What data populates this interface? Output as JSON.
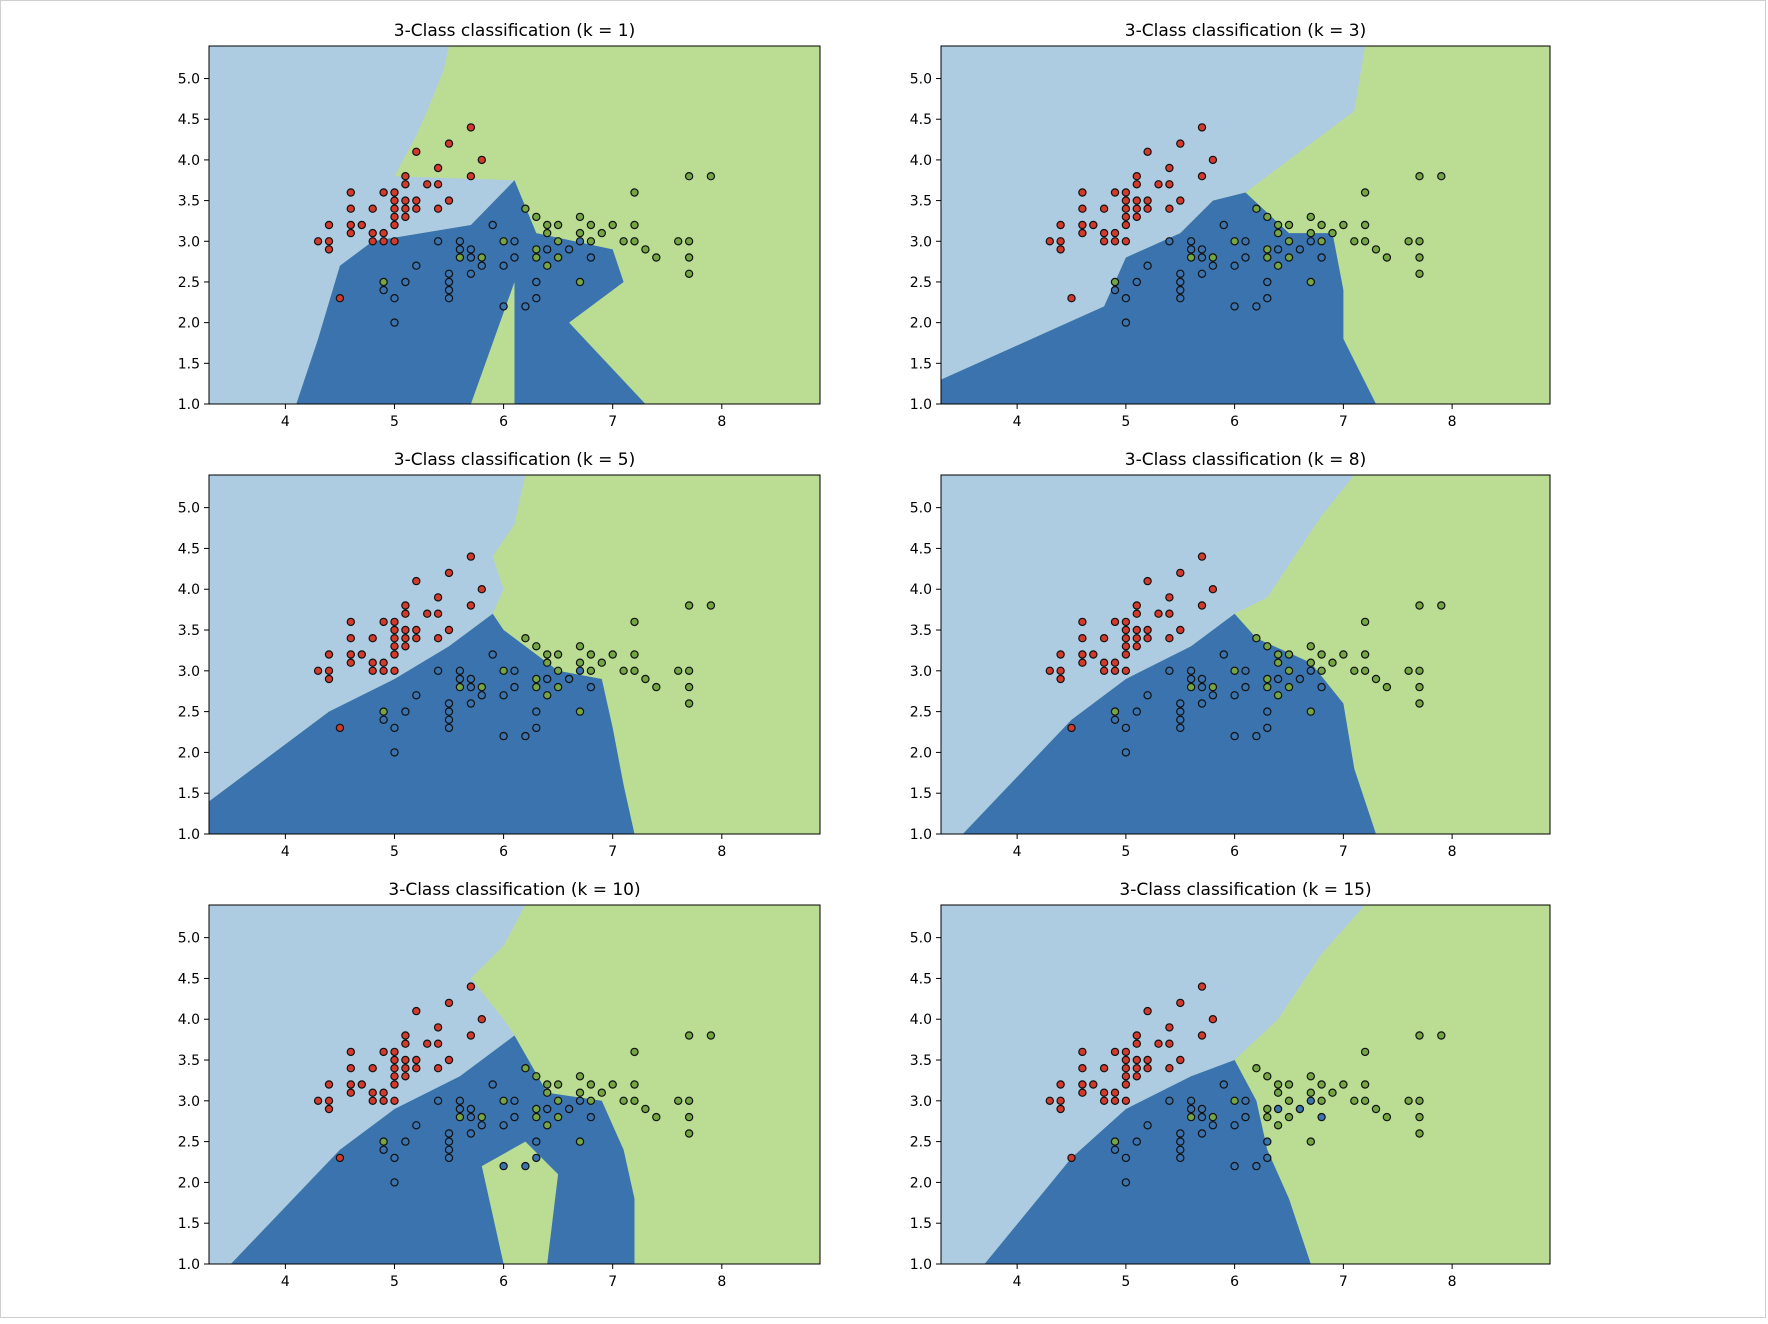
{
  "colors": {
    "class_a_region": "#aecce1",
    "class_b_region": "#3a73ae",
    "class_c_region": "#bbdd93",
    "class_a_point": "#d33a2c",
    "class_b_point": "#3a73ae",
    "class_c_point": "#75a644",
    "axis_color": "#000000"
  },
  "chart_data": [
    {
      "type": "scatter",
      "title": "3-Class classification (k = 1)",
      "xlabel": "",
      "ylabel": "",
      "xlim": [
        3.3,
        8.9
      ],
      "ylim": [
        1.0,
        5.4
      ],
      "xticks": [
        "4",
        "5",
        "6",
        "7",
        "8"
      ],
      "yticks": [
        "1.0",
        "1.5",
        "2.0",
        "2.5",
        "3.0",
        "3.5",
        "4.0",
        "4.5",
        "5.0"
      ],
      "regions": {
        "light": [
          [
            3.3,
            5.4
          ],
          [
            5.5,
            5.4
          ],
          [
            5.45,
            5.1
          ],
          [
            5.3,
            4.6
          ],
          [
            5.2,
            4.3
          ],
          [
            5.0,
            3.8
          ],
          [
            6.1,
            3.75
          ],
          [
            5.7,
            3.2
          ],
          [
            4.8,
            3.0
          ],
          [
            4.5,
            2.7
          ],
          [
            4.3,
            1.8
          ],
          [
            4.1,
            1.0
          ],
          [
            3.3,
            1.0
          ]
        ],
        "dark": [
          [
            4.1,
            1.0
          ],
          [
            4.3,
            1.8
          ],
          [
            4.5,
            2.7
          ],
          [
            4.8,
            3.0
          ],
          [
            5.7,
            3.2
          ],
          [
            6.1,
            3.75
          ],
          [
            6.3,
            3.1
          ],
          [
            7.0,
            2.9
          ],
          [
            7.1,
            2.5
          ],
          [
            6.6,
            2.0
          ],
          [
            7.3,
            1.0
          ],
          [
            6.1,
            1.0
          ],
          [
            6.1,
            2.5
          ],
          [
            5.7,
            1.0
          ]
        ],
        "light_note": "remaining area is class C"
      },
      "series": [
        {
          "class": "a",
          "points": [
            [
              4.3,
              3.0
            ],
            [
              4.4,
              2.9
            ],
            [
              4.4,
              3.0
            ],
            [
              4.4,
              3.2
            ],
            [
              4.5,
              2.3
            ],
            [
              4.6,
              3.1
            ],
            [
              4.6,
              3.2
            ],
            [
              4.6,
              3.4
            ],
            [
              4.6,
              3.6
            ],
            [
              4.7,
              3.2
            ],
            [
              4.8,
              3.0
            ],
            [
              4.8,
              3.1
            ],
            [
              4.8,
              3.4
            ],
            [
              4.9,
              3.0
            ],
            [
              4.9,
              3.1
            ],
            [
              4.9,
              3.6
            ],
            [
              5.0,
              3.0
            ],
            [
              5.0,
              3.2
            ],
            [
              5.0,
              3.3
            ],
            [
              5.0,
              3.4
            ],
            [
              5.0,
              3.5
            ],
            [
              5.0,
              3.6
            ],
            [
              5.1,
              3.3
            ],
            [
              5.1,
              3.4
            ],
            [
              5.1,
              3.5
            ],
            [
              5.1,
              3.7
            ],
            [
              5.1,
              3.8
            ],
            [
              5.2,
              3.4
            ],
            [
              5.2,
              3.5
            ],
            [
              5.2,
              4.1
            ],
            [
              5.3,
              3.7
            ],
            [
              5.4,
              3.4
            ],
            [
              5.4,
              3.7
            ],
            [
              5.4,
              3.9
            ],
            [
              5.5,
              3.5
            ],
            [
              5.5,
              4.2
            ],
            [
              5.7,
              3.8
            ],
            [
              5.7,
              4.4
            ],
            [
              5.8,
              4.0
            ]
          ]
        },
        {
          "class": "b",
          "points": [
            [
              4.9,
              2.4
            ],
            [
              5.0,
              2.0
            ],
            [
              5.0,
              2.3
            ],
            [
              5.1,
              2.5
            ],
            [
              5.2,
              2.7
            ],
            [
              5.5,
              2.3
            ],
            [
              5.5,
              2.4
            ],
            [
              5.5,
              2.5
            ],
            [
              5.5,
              2.6
            ],
            [
              5.6,
              2.9
            ],
            [
              5.6,
              3.0
            ],
            [
              5.7,
              2.6
            ],
            [
              5.7,
              2.8
            ],
            [
              5.7,
              2.9
            ],
            [
              5.8,
              2.7
            ],
            [
              6.0,
              2.2
            ],
            [
              6.0,
              2.7
            ],
            [
              6.1,
              2.8
            ],
            [
              6.2,
              2.2
            ],
            [
              6.3,
              2.3
            ],
            [
              6.4,
              2.9
            ],
            [
              6.6,
              2.9
            ],
            [
              6.7,
              3.0
            ],
            [
              6.8,
              2.8
            ],
            [
              5.4,
              3.0
            ],
            [
              5.9,
              3.2
            ],
            [
              6.1,
              3.0
            ],
            [
              6.3,
              2.5
            ]
          ]
        },
        {
          "class": "c",
          "points": [
            [
              4.9,
              2.5
            ],
            [
              5.6,
              2.8
            ],
            [
              5.8,
              2.8
            ],
            [
              6.0,
              3.0
            ],
            [
              6.2,
              3.4
            ],
            [
              6.3,
              2.9
            ],
            [
              6.3,
              3.3
            ],
            [
              6.4,
              2.7
            ],
            [
              6.4,
              3.1
            ],
            [
              6.4,
              3.2
            ],
            [
              6.5,
              3.0
            ],
            [
              6.5,
              3.2
            ],
            [
              6.7,
              2.5
            ],
            [
              6.7,
              3.1
            ],
            [
              6.7,
              3.3
            ],
            [
              6.8,
              3.0
            ],
            [
              6.8,
              3.2
            ],
            [
              6.9,
              3.1
            ],
            [
              7.0,
              3.2
            ],
            [
              7.1,
              3.0
            ],
            [
              7.2,
              3.0
            ],
            [
              7.2,
              3.2
            ],
            [
              7.2,
              3.6
            ],
            [
              7.3,
              2.9
            ],
            [
              7.4,
              2.8
            ],
            [
              7.6,
              3.0
            ],
            [
              7.7,
              2.6
            ],
            [
              7.7,
              2.8
            ],
            [
              7.7,
              3.0
            ],
            [
              7.7,
              3.8
            ],
            [
              7.9,
              3.8
            ],
            [
              6.3,
              2.8
            ],
            [
              6.5,
              2.8
            ]
          ]
        }
      ]
    },
    {
      "type": "scatter",
      "title": "3-Class classification (k = 3)",
      "xlabel": "",
      "ylabel": "",
      "xlim": [
        3.3,
        8.9
      ],
      "ylim": [
        1.0,
        5.4
      ],
      "xticks": [
        "4",
        "5",
        "6",
        "7",
        "8"
      ],
      "yticks": [
        "1.0",
        "1.5",
        "2.0",
        "2.5",
        "3.0",
        "3.5",
        "4.0",
        "4.5",
        "5.0"
      ],
      "regions": {
        "light": [
          [
            3.3,
            5.4
          ],
          [
            7.2,
            5.4
          ],
          [
            7.1,
            4.6
          ],
          [
            6.7,
            4.2
          ],
          [
            6.1,
            3.6
          ],
          [
            5.8,
            3.5
          ],
          [
            5.5,
            3.1
          ],
          [
            5.0,
            2.8
          ],
          [
            4.8,
            2.2
          ],
          [
            4.3,
            1.9
          ],
          [
            3.3,
            1.3
          ]
        ],
        "dark": [
          [
            3.3,
            1.3
          ],
          [
            4.3,
            1.9
          ],
          [
            4.8,
            2.2
          ],
          [
            5.0,
            2.8
          ],
          [
            5.5,
            3.1
          ],
          [
            5.8,
            3.5
          ],
          [
            6.1,
            3.6
          ],
          [
            6.5,
            3.1
          ],
          [
            6.9,
            3.1
          ],
          [
            7.0,
            2.4
          ],
          [
            7.0,
            1.8
          ],
          [
            7.3,
            1.0
          ],
          [
            3.3,
            1.0
          ]
        ]
      },
      "series": "same points as k = 1"
    },
    {
      "type": "scatter",
      "title": "3-Class classification (k = 5)",
      "xlabel": "",
      "ylabel": "",
      "xlim": [
        3.3,
        8.9
      ],
      "ylim": [
        1.0,
        5.4
      ],
      "xticks": [
        "4",
        "5",
        "6",
        "7",
        "8"
      ],
      "yticks": [
        "1.0",
        "1.5",
        "2.0",
        "2.5",
        "3.0",
        "3.5",
        "4.0",
        "4.5",
        "5.0"
      ],
      "regions": {
        "light": [
          [
            3.3,
            5.4
          ],
          [
            6.2,
            5.4
          ],
          [
            6.1,
            4.8
          ],
          [
            5.9,
            4.4
          ],
          [
            6.0,
            4.0
          ],
          [
            5.9,
            3.7
          ],
          [
            5.5,
            3.3
          ],
          [
            5.0,
            2.9
          ],
          [
            4.4,
            2.5
          ],
          [
            3.3,
            1.4
          ]
        ],
        "dark": [
          [
            3.3,
            1.4
          ],
          [
            4.4,
            2.5
          ],
          [
            5.0,
            2.9
          ],
          [
            5.5,
            3.3
          ],
          [
            5.9,
            3.7
          ],
          [
            6.0,
            3.5
          ],
          [
            6.5,
            3.0
          ],
          [
            6.9,
            2.9
          ],
          [
            7.0,
            2.3
          ],
          [
            7.1,
            1.6
          ],
          [
            7.2,
            1.0
          ],
          [
            3.3,
            1.0
          ]
        ]
      },
      "series": "same points as k = 1"
    },
    {
      "type": "scatter",
      "title": "3-Class classification (k = 8)",
      "xlabel": "",
      "ylabel": "",
      "xlim": [
        3.3,
        8.9
      ],
      "ylim": [
        1.0,
        5.4
      ],
      "xticks": [
        "4",
        "5",
        "6",
        "7",
        "8"
      ],
      "yticks": [
        "1.0",
        "1.5",
        "2.0",
        "2.5",
        "3.0",
        "3.5",
        "4.0",
        "4.5",
        "5.0"
      ],
      "regions": {
        "light": [
          [
            3.3,
            5.4
          ],
          [
            7.1,
            5.4
          ],
          [
            6.8,
            4.9
          ],
          [
            6.5,
            4.3
          ],
          [
            6.3,
            3.9
          ],
          [
            6.0,
            3.7
          ],
          [
            5.6,
            3.3
          ],
          [
            5.0,
            2.9
          ],
          [
            4.5,
            2.4
          ],
          [
            3.5,
            1.0
          ],
          [
            3.3,
            1.0
          ]
        ],
        "dark": [
          [
            3.5,
            1.0
          ],
          [
            4.5,
            2.4
          ],
          [
            5.0,
            2.9
          ],
          [
            5.6,
            3.3
          ],
          [
            6.0,
            3.7
          ],
          [
            6.2,
            3.4
          ],
          [
            6.7,
            3.1
          ],
          [
            7.0,
            2.6
          ],
          [
            7.1,
            1.8
          ],
          [
            7.3,
            1.0
          ]
        ]
      },
      "series": "same points as k = 1"
    },
    {
      "type": "scatter",
      "title": "3-Class classification (k = 10)",
      "xlabel": "",
      "ylabel": "",
      "xlim": [
        3.3,
        8.9
      ],
      "ylim": [
        1.0,
        5.4
      ],
      "xticks": [
        "4",
        "5",
        "6",
        "7",
        "8"
      ],
      "yticks": [
        "1.0",
        "1.5",
        "2.0",
        "2.5",
        "3.0",
        "3.5",
        "4.0",
        "4.5",
        "5.0"
      ],
      "regions": {
        "light": [
          [
            3.3,
            5.4
          ],
          [
            6.2,
            5.4
          ],
          [
            6.0,
            4.9
          ],
          [
            5.7,
            4.5
          ],
          [
            6.0,
            4.0
          ],
          [
            6.1,
            3.8
          ],
          [
            5.6,
            3.3
          ],
          [
            5.0,
            2.9
          ],
          [
            4.5,
            2.4
          ],
          [
            3.5,
            1.0
          ],
          [
            3.3,
            1.0
          ]
        ],
        "dark": [
          [
            3.5,
            1.0
          ],
          [
            4.5,
            2.4
          ],
          [
            5.0,
            2.9
          ],
          [
            5.6,
            3.3
          ],
          [
            6.1,
            3.8
          ],
          [
            6.4,
            3.1
          ],
          [
            6.9,
            3.0
          ],
          [
            7.1,
            2.4
          ],
          [
            7.2,
            1.8
          ],
          [
            7.2,
            1.0
          ],
          [
            6.4,
            1.0
          ],
          [
            6.5,
            2.1
          ],
          [
            6.2,
            2.5
          ],
          [
            5.8,
            2.2
          ],
          [
            6.0,
            1.0
          ]
        ]
      },
      "series": "same points as k = 1"
    },
    {
      "type": "scatter",
      "title": "3-Class classification (k = 15)",
      "xlabel": "",
      "ylabel": "",
      "xlim": [
        3.3,
        8.9
      ],
      "ylim": [
        1.0,
        5.4
      ],
      "xticks": [
        "4",
        "5",
        "6",
        "7",
        "8"
      ],
      "yticks": [
        "1.0",
        "1.5",
        "2.0",
        "2.5",
        "3.0",
        "3.5",
        "4.0",
        "4.5",
        "5.0"
      ],
      "regions": {
        "light": [
          [
            3.3,
            5.4
          ],
          [
            7.2,
            5.4
          ],
          [
            6.8,
            4.8
          ],
          [
            6.4,
            4.0
          ],
          [
            6.0,
            3.5
          ],
          [
            5.6,
            3.3
          ],
          [
            5.0,
            2.9
          ],
          [
            4.5,
            2.3
          ],
          [
            3.7,
            1.0
          ],
          [
            3.3,
            1.0
          ]
        ],
        "dark": [
          [
            3.7,
            1.0
          ],
          [
            4.5,
            2.3
          ],
          [
            5.0,
            2.9
          ],
          [
            5.6,
            3.3
          ],
          [
            6.0,
            3.5
          ],
          [
            6.2,
            3.0
          ],
          [
            6.3,
            2.4
          ],
          [
            6.5,
            1.8
          ],
          [
            6.7,
            1.0
          ]
        ]
      },
      "series": "same points as k = 1"
    }
  ]
}
